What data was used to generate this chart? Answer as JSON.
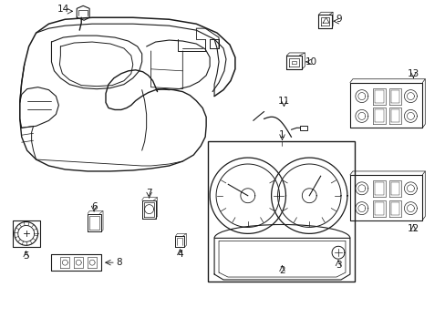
{
  "bg_color": "#ffffff",
  "line_color": "#1a1a1a",
  "fig_width": 4.89,
  "fig_height": 3.6,
  "dpi": 100,
  "label_fontsize": 7.5,
  "lw_main": 0.9,
  "lw_thin": 0.6,
  "lw_inner": 0.5
}
